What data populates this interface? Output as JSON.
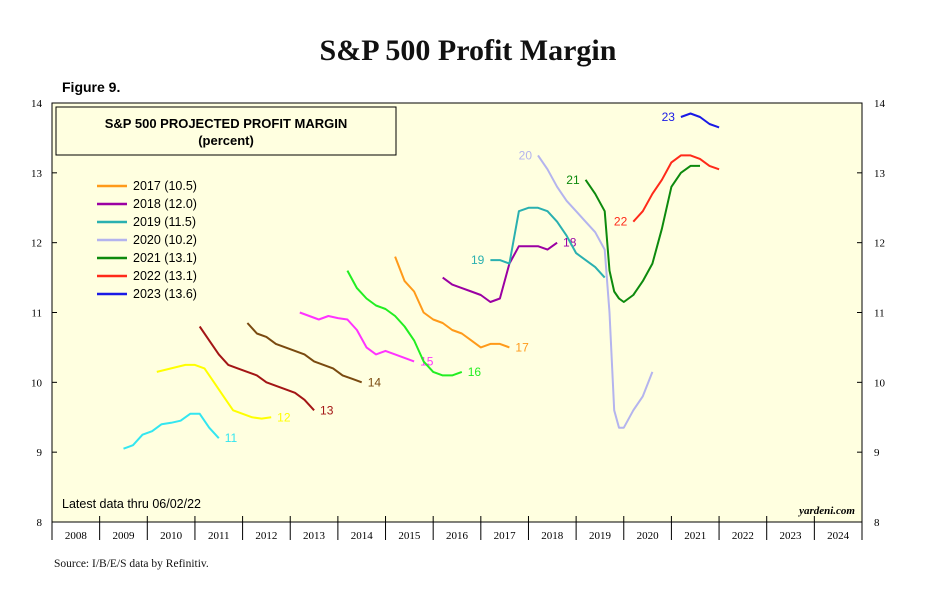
{
  "page": {
    "title": "S&P 500 Profit Margin",
    "figure": "Figure 9.",
    "source": "Source: I/B/E/S data by Refinitiv."
  },
  "chart_data": {
    "type": "line",
    "title": "S&P 500 PROJECTED PROFIT MARGIN",
    "subtitle": "(percent)",
    "xlabel": "",
    "ylabel": "",
    "xlim": [
      2008,
      2025
    ],
    "ylim": [
      8,
      14
    ],
    "yticks": [
      8,
      9,
      10,
      11,
      12,
      13,
      14
    ],
    "xticks": [
      "2008",
      "2009",
      "2010",
      "2011",
      "2012",
      "2013",
      "2014",
      "2015",
      "2016",
      "2017",
      "2018",
      "2019",
      "2020",
      "2021",
      "2022",
      "2023",
      "2024"
    ],
    "grid": false,
    "legend_position": "top-left",
    "background": "#ffffe0",
    "note": "Latest data thru 06/02/22",
    "watermark": "yardeni.com",
    "legend": [
      {
        "label": "2017 (10.5)",
        "color": "#ff9a1a"
      },
      {
        "label": "2018 (12.0)",
        "color": "#9b00a3"
      },
      {
        "label": "2019 (11.5)",
        "color": "#2ab0b0"
      },
      {
        "label": "2020 (10.2)",
        "color": "#b4b4ee"
      },
      {
        "label": "2021 (13.1)",
        "color": "#0d8a0d"
      },
      {
        "label": "2022 (13.1)",
        "color": "#ff2a1a"
      },
      {
        "label": "2023 (13.6)",
        "color": "#1a1ae6"
      }
    ],
    "series": [
      {
        "label": "11",
        "color": "#33e6f0",
        "x": [
          2009.5,
          2009.7,
          2009.9,
          2010.1,
          2010.3,
          2010.5,
          2010.7,
          2010.9,
          2011.1,
          2011.3,
          2011.5
        ],
        "y": [
          9.05,
          9.1,
          9.25,
          9.3,
          9.4,
          9.42,
          9.45,
          9.55,
          9.55,
          9.35,
          9.2
        ]
      },
      {
        "label": "12",
        "color": "#ffff00",
        "x": [
          2010.2,
          2010.5,
          2010.8,
          2011.0,
          2011.2,
          2011.4,
          2011.6,
          2011.8,
          2012.0,
          2012.2,
          2012.4,
          2012.6
        ],
        "y": [
          10.15,
          10.2,
          10.25,
          10.25,
          10.2,
          10.0,
          9.8,
          9.6,
          9.55,
          9.5,
          9.48,
          9.5
        ]
      },
      {
        "label": "13",
        "color": "#a31515",
        "x": [
          2011.1,
          2011.3,
          2011.5,
          2011.7,
          2011.9,
          2012.1,
          2012.3,
          2012.5,
          2012.7,
          2012.9,
          2013.1,
          2013.3,
          2013.5
        ],
        "y": [
          10.8,
          10.6,
          10.4,
          10.25,
          10.2,
          10.15,
          10.1,
          10.0,
          9.95,
          9.9,
          9.85,
          9.75,
          9.6
        ]
      },
      {
        "label": "14",
        "color": "#7a4a10",
        "x": [
          2012.1,
          2012.3,
          2012.5,
          2012.7,
          2012.9,
          2013.1,
          2013.3,
          2013.5,
          2013.7,
          2013.9,
          2014.1,
          2014.3,
          2014.5
        ],
        "y": [
          10.85,
          10.7,
          10.65,
          10.55,
          10.5,
          10.45,
          10.4,
          10.3,
          10.25,
          10.2,
          10.1,
          10.05,
          10.0
        ]
      },
      {
        "label": "15",
        "color": "#ff33ff",
        "x": [
          2013.2,
          2013.4,
          2013.6,
          2013.8,
          2014.0,
          2014.2,
          2014.4,
          2014.6,
          2014.8,
          2015.0,
          2015.2,
          2015.4,
          2015.6
        ],
        "y": [
          11.0,
          10.95,
          10.9,
          10.95,
          10.92,
          10.9,
          10.75,
          10.5,
          10.4,
          10.45,
          10.4,
          10.35,
          10.3
        ]
      },
      {
        "label": "16",
        "color": "#22ee22",
        "x": [
          2014.2,
          2014.4,
          2014.6,
          2014.8,
          2015.0,
          2015.2,
          2015.4,
          2015.6,
          2015.8,
          2016.0,
          2016.2,
          2016.4,
          2016.6
        ],
        "y": [
          11.6,
          11.35,
          11.2,
          11.1,
          11.05,
          10.95,
          10.8,
          10.6,
          10.3,
          10.15,
          10.1,
          10.1,
          10.15
        ]
      },
      {
        "label": "17",
        "color": "#ff9a1a",
        "x": [
          2015.2,
          2015.4,
          2015.6,
          2015.8,
          2016.0,
          2016.2,
          2016.4,
          2016.6,
          2016.8,
          2017.0,
          2017.2,
          2017.4,
          2017.6
        ],
        "y": [
          11.8,
          11.45,
          11.3,
          11.0,
          10.9,
          10.85,
          10.75,
          10.7,
          10.6,
          10.5,
          10.55,
          10.55,
          10.5
        ]
      },
      {
        "label": "18",
        "color": "#9b00a3",
        "x": [
          2016.2,
          2016.4,
          2016.6,
          2016.8,
          2017.0,
          2017.2,
          2017.4,
          2017.6,
          2017.8,
          2018.0,
          2018.2,
          2018.4,
          2018.6
        ],
        "y": [
          11.5,
          11.4,
          11.35,
          11.3,
          11.25,
          11.15,
          11.2,
          11.7,
          11.95,
          11.95,
          11.95,
          11.9,
          12.0
        ]
      },
      {
        "label": "19",
        "color": "#2ab0b0",
        "x": [
          2017.2,
          2017.4,
          2017.6,
          2017.8,
          2018.0,
          2018.2,
          2018.4,
          2018.6,
          2018.8,
          2019.0,
          2019.2,
          2019.4,
          2019.6
        ],
        "y": [
          11.75,
          11.75,
          11.7,
          12.45,
          12.5,
          12.5,
          12.45,
          12.3,
          12.1,
          11.85,
          11.75,
          11.65,
          11.5
        ]
      },
      {
        "label": "20",
        "color": "#b4b4ee",
        "x": [
          2018.2,
          2018.4,
          2018.6,
          2018.8,
          2019.0,
          2019.2,
          2019.4,
          2019.6,
          2019.7,
          2019.8,
          2019.9,
          2020.0,
          2020.2,
          2020.4,
          2020.6
        ],
        "y": [
          13.25,
          13.05,
          12.8,
          12.6,
          12.45,
          12.3,
          12.15,
          11.9,
          11.0,
          9.6,
          9.35,
          9.35,
          9.6,
          9.8,
          10.15
        ]
      },
      {
        "label": "21",
        "color": "#0d8a0d",
        "x": [
          2019.2,
          2019.4,
          2019.6,
          2019.7,
          2019.8,
          2019.9,
          2020.0,
          2020.2,
          2020.4,
          2020.6,
          2020.8,
          2021.0,
          2021.2,
          2021.4,
          2021.6
        ],
        "y": [
          12.9,
          12.7,
          12.45,
          11.6,
          11.3,
          11.2,
          11.15,
          11.25,
          11.45,
          11.7,
          12.2,
          12.8,
          13.0,
          13.1,
          13.1
        ]
      },
      {
        "label": "22",
        "color": "#ff2a1a",
        "x": [
          2020.2,
          2020.4,
          2020.6,
          2020.8,
          2021.0,
          2021.2,
          2021.4,
          2021.6,
          2021.8,
          2022.0
        ],
        "y": [
          12.3,
          12.45,
          12.7,
          12.9,
          13.15,
          13.25,
          13.25,
          13.2,
          13.1,
          13.05
        ]
      },
      {
        "label": "23",
        "color": "#1a1ae6",
        "x": [
          2021.2,
          2021.4,
          2021.6,
          2021.8,
          2022.0
        ],
        "y": [
          13.8,
          13.85,
          13.8,
          13.7,
          13.65
        ]
      }
    ]
  }
}
